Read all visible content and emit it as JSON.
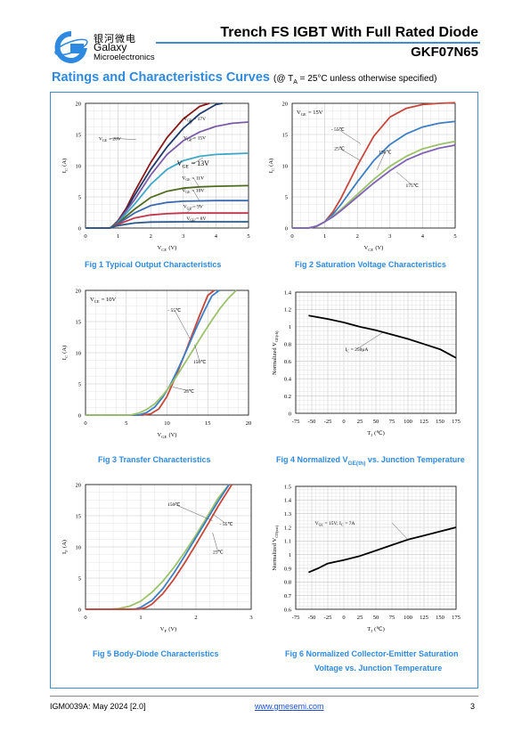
{
  "header": {
    "logo_cn": "银河微电",
    "logo_en1": "Galaxy",
    "logo_en2": "Microelectronics",
    "title": "Trench FS IGBT With Full Rated Diode",
    "part_number": "GKF07N65",
    "accent_color": "#3b8fd9"
  },
  "section": {
    "title": "Ratings and Characteristics Curves",
    "note": "(@ T",
    "note_sub": "A",
    "note_rest": " = 25°C unless otherwise specified)"
  },
  "captions": {
    "fig1": "Fig 1    Typical Output Characteristics",
    "fig2": "Fig 2    Saturation Voltage Characteristics",
    "fig3": "Fig 3    Transfer Characteristics",
    "fig4_a": "Fig 4    Normalized V",
    "fig4_sub": "GE(th)",
    "fig4_b": " vs. Junction Temperature",
    "fig5": "Fig 5    Body-Diode Characteristics",
    "fig6_l1": "Fig 6    Normalized Collector-Emitter Saturation",
    "fig6_l2": "Voltage vs. Junction Temperature"
  },
  "footer": {
    "doc_id": "IGM0039A: May 2024 [2.0]",
    "url": "www.gmesemi.com",
    "page": "3"
  },
  "chart_data": [
    {
      "id": "fig1",
      "type": "line",
      "xlabel": "V_CE (V)",
      "ylabel": "I_C (A)",
      "xlim": [
        0,
        5
      ],
      "ylim": [
        0,
        20
      ],
      "xticks": [
        0,
        1,
        2,
        3,
        4,
        5
      ],
      "yticks": [
        0,
        5,
        10,
        15,
        20
      ],
      "grid": true,
      "series": [
        {
          "name": "V_GE = 20V",
          "color": "#8b1a1a",
          "x": [
            0,
            0.75,
            0.85,
            1,
            1.25,
            1.5,
            2,
            2.5,
            3,
            3.5,
            3.8
          ],
          "y": [
            0,
            0,
            0.4,
            1.2,
            3.2,
            5.8,
            10.5,
            14.5,
            17.5,
            19.5,
            20
          ]
        },
        {
          "name": "V_GE = 17V",
          "color": "#1f3a6b",
          "x": [
            0,
            0.75,
            0.85,
            1,
            1.25,
            1.5,
            2,
            2.5,
            3,
            3.5,
            4,
            4.2
          ],
          "y": [
            0,
            0,
            0.4,
            1.1,
            2.9,
            5.2,
            9.4,
            13,
            16,
            18.3,
            19.8,
            20
          ]
        },
        {
          "name": "V_GE = 15V",
          "color": "#7b5ba8",
          "x": [
            0,
            0.75,
            0.85,
            1,
            1.5,
            2,
            2.5,
            3,
            3.5,
            4,
            4.5,
            5
          ],
          "y": [
            0,
            0,
            0.3,
            1,
            4.5,
            8.5,
            11.8,
            14,
            15.4,
            16.3,
            16.8,
            17
          ]
        },
        {
          "name": "V_GE = 13V",
          "color": "#3fa9c8",
          "x": [
            0,
            0.75,
            0.85,
            1,
            1.5,
            2,
            2.5,
            3,
            3.5,
            4,
            4.5,
            5
          ],
          "y": [
            0,
            0,
            0.3,
            0.9,
            3.8,
            7,
            9.4,
            10.8,
            11.5,
            11.8,
            11.9,
            12
          ]
        },
        {
          "name": "V_GE = 11V",
          "color": "#4f6b1f",
          "x": [
            0,
            0.75,
            0.85,
            1,
            1.5,
            2,
            2.5,
            3,
            3.5,
            4,
            5
          ],
          "y": [
            0,
            0,
            0.3,
            0.8,
            3,
            4.9,
            5.9,
            6.4,
            6.6,
            6.7,
            6.8
          ]
        },
        {
          "name": "V_GE = 10V",
          "color": "#3a6bb0",
          "x": [
            0,
            0.75,
            0.85,
            1,
            1.5,
            2,
            2.5,
            3,
            4,
            5
          ],
          "y": [
            0,
            0,
            0.2,
            0.7,
            2.4,
            3.6,
            4.1,
            4.3,
            4.4,
            4.4
          ]
        },
        {
          "name": "V_GE = 9V",
          "color": "#c2364b",
          "x": [
            0,
            0.75,
            0.85,
            1,
            1.5,
            2,
            2.5,
            3,
            4,
            5
          ],
          "y": [
            0,
            0,
            0.2,
            0.6,
            1.6,
            2.1,
            2.3,
            2.4,
            2.4,
            2.4
          ]
        },
        {
          "name": "V_GE = 8V",
          "color": "#2b5a8a",
          "x": [
            0,
            0.75,
            0.85,
            1,
            1.5,
            2,
            3,
            4,
            5
          ],
          "y": [
            0,
            0,
            0.2,
            0.4,
            0.8,
            0.95,
            1,
            1,
            1
          ]
        }
      ],
      "labels": [
        {
          "text": "V_GE = 20V",
          "x": 0.75,
          "y": 14.1,
          "ax": 1.55,
          "ay": 14.2
        },
        {
          "text": "V_GE = 17V",
          "x": 3.35,
          "y": 17.3,
          "ax": 3.2,
          "ay": 16.6
        },
        {
          "text": "V_GE = 15V",
          "x": 3.35,
          "y": 14.2,
          "ax": 3.2,
          "ay": 14.1
        },
        {
          "text": "V_GE = 13V",
          "x": 3.3,
          "y": 10.0,
          "ax": 3.6,
          "ay": 11.3,
          "big": true
        },
        {
          "text": "V_GE = 11V",
          "x": 3.3,
          "y": 7.8,
          "ax": 3.5,
          "ay": 6.5
        },
        {
          "text": "V_GE = 10V",
          "x": 3.3,
          "y": 5.8,
          "ax": 3.5,
          "ay": 4.3
        },
        {
          "text": "V_GE = 9V",
          "x": 3.3,
          "y": 3.2,
          "ax": 3.1,
          "ay": 2.4
        },
        {
          "text": "V_GE = 8V",
          "x": 3.4,
          "y": 1.3,
          "ax": 3.3,
          "ay": 1
        }
      ]
    },
    {
      "id": "fig2",
      "type": "line",
      "xlabel": "V_CE (V)",
      "ylabel": "I_C (A)",
      "xlim": [
        0,
        5
      ],
      "ylim": [
        0,
        20
      ],
      "xticks": [
        0,
        1,
        2,
        3,
        4,
        5
      ],
      "yticks": [
        0,
        5,
        10,
        15,
        20
      ],
      "grid": true,
      "annotation": "V_GE = 15V",
      "series": [
        {
          "name": "- 55℃",
          "color": "#c8463a",
          "x": [
            0,
            0.5,
            0.75,
            1,
            1.25,
            1.5,
            2,
            2.5,
            3,
            3.5,
            4,
            4.5,
            5
          ],
          "y": [
            0,
            0,
            0.3,
            1,
            2.6,
            4.8,
            10,
            14.7,
            17.8,
            19.2,
            19.8,
            20,
            20.1
          ]
        },
        {
          "name": "25℃",
          "color": "#3c7fc4",
          "x": [
            0,
            0.5,
            0.75,
            1,
            1.25,
            1.5,
            2,
            2.5,
            3,
            3.5,
            4,
            4.5,
            5
          ],
          "y": [
            0,
            0,
            0.3,
            1,
            2.2,
            3.8,
            7.4,
            10.8,
            13.4,
            15.1,
            16.2,
            16.8,
            17.1
          ]
        },
        {
          "name": "150℃",
          "color": "#9bc26a",
          "x": [
            0,
            0.5,
            0.75,
            1,
            1.25,
            1.5,
            2,
            2.5,
            3,
            3.5,
            4,
            4.5,
            5
          ],
          "y": [
            0,
            0,
            0.3,
            1,
            1.9,
            3,
            5.4,
            7.8,
            9.9,
            11.5,
            12.7,
            13.4,
            13.9
          ]
        },
        {
          "name": "175℃",
          "color": "#8063b4",
          "x": [
            0,
            0.5,
            0.75,
            1,
            1.25,
            1.5,
            2,
            2.5,
            3,
            3.5,
            4,
            4.5,
            5
          ],
          "y": [
            0,
            0,
            0.3,
            1,
            1.8,
            2.8,
            5,
            7.2,
            9.2,
            10.9,
            12,
            12.8,
            13.3
          ]
        }
      ],
      "labels": [
        {
          "text": "- 55℃",
          "x": 1.4,
          "y": 15.6,
          "ax": 2.1,
          "ay": 13.5
        },
        {
          "text": "25℃",
          "x": 1.45,
          "y": 12.5,
          "ax": 2.1,
          "ay": 10.8
        },
        {
          "text": "150℃",
          "x": 2.85,
          "y": 11.9,
          "ax": 2.6,
          "ay": 9.3
        },
        {
          "text": "175℃",
          "x": 3.68,
          "y": 6.6,
          "ax": 3.2,
          "ay": 9.0
        }
      ]
    },
    {
      "id": "fig3",
      "type": "line",
      "xlabel": "V_GE (V)",
      "ylabel": "I_C (A)",
      "xlim": [
        0,
        20
      ],
      "ylim": [
        0,
        20
      ],
      "xticks": [
        0,
        5,
        10,
        15,
        20
      ],
      "yticks": [
        0,
        5,
        10,
        15,
        20
      ],
      "grid": true,
      "annotation": "V_CE = 10V",
      "series": [
        {
          "name": "- 55℃",
          "color": "#c8463a",
          "x": [
            0,
            7,
            8,
            9,
            10,
            11,
            12,
            13,
            14,
            15,
            15.8
          ],
          "y": [
            0,
            0,
            0.2,
            1,
            3,
            6,
            9.2,
            12.6,
            16,
            19.2,
            20
          ]
        },
        {
          "name": "150℃",
          "color": "#3c7fc4",
          "x": [
            0,
            6.5,
            7.5,
            8.5,
            9.5,
            10.5,
            11.5,
            12.5,
            13.5,
            14.5,
            15.5,
            16.4
          ],
          "y": [
            0,
            0,
            0.4,
            1.3,
            2.9,
            5.1,
            7.8,
            10.7,
            13.7,
            16.5,
            19.1,
            20
          ]
        },
        {
          "name": "25℃",
          "color": "#9bc26a",
          "x": [
            0,
            5.5,
            6.5,
            7.5,
            8.5,
            9.5,
            10.5,
            11.5,
            12.5,
            13.5,
            14.5,
            15.5,
            16.5,
            17.5,
            18.5
          ],
          "y": [
            0,
            0,
            0.3,
            0.9,
            1.8,
            3.2,
            4.9,
            6.9,
            9,
            11.1,
            13.2,
            15.2,
            17.1,
            18.7,
            20
          ]
        }
      ],
      "labels": [
        {
          "text": "- 55℃",
          "x": 10.9,
          "y": 16.6,
          "ax": 12.8,
          "ay": 12.3
        },
        {
          "text": "150℃",
          "x": 14,
          "y": 8.3,
          "ax": 13.4,
          "ay": 11.3
        },
        {
          "text": "25℃",
          "x": 12.7,
          "y": 3.6,
          "ax": 10.7,
          "ay": 4.5
        }
      ]
    },
    {
      "id": "fig4",
      "type": "line",
      "xlabel": "T_J (℃)",
      "ylabel": "Normalized V_GE(th)",
      "xlim": [
        -75,
        175
      ],
      "ylim": [
        0,
        1.4
      ],
      "xticks": [
        -75,
        -50,
        -25,
        0,
        25,
        50,
        75,
        100,
        125,
        150,
        175
      ],
      "yticks": [
        0,
        0.2,
        0.4,
        0.6,
        0.8,
        1,
        1.2,
        1.4
      ],
      "grid": true,
      "series": [
        {
          "name": "I_C = 250μA",
          "color": "#000000",
          "x": [
            -55,
            -25,
            0,
            25,
            50,
            75,
            100,
            125,
            150,
            175
          ],
          "y": [
            1.13,
            1.09,
            1.05,
            1.0,
            0.96,
            0.91,
            0.86,
            0.8,
            0.74,
            0.64
          ]
        }
      ],
      "labels": [
        {
          "text": "I_C = 250μA",
          "x": 20,
          "y": 0.72,
          "ax": 60,
          "ay": 0.93
        }
      ]
    },
    {
      "id": "fig5",
      "type": "line",
      "xlabel": "V_F (V)",
      "ylabel": "I_F (A)",
      "xlim": [
        0,
        3
      ],
      "ylim": [
        0,
        20
      ],
      "xticks": [
        0,
        1,
        2,
        3
      ],
      "yticks": [
        0,
        5,
        10,
        15,
        20
      ],
      "grid": true,
      "series": [
        {
          "name": "150℃",
          "color": "#9bc26a",
          "x": [
            0,
            0.4,
            0.6,
            0.8,
            1,
            1.2,
            1.4,
            1.6,
            1.8,
            2,
            2.2,
            2.4,
            2.6
          ],
          "y": [
            0,
            0,
            0.1,
            0.5,
            1.3,
            2.7,
            4.5,
            6.7,
            9.2,
            11.9,
            14.8,
            17.8,
            20
          ]
        },
        {
          "name": "- 55℃",
          "color": "#3c7fc4",
          "x": [
            0,
            0.8,
            0.9,
            1,
            1.2,
            1.4,
            1.6,
            1.8,
            2,
            2.2,
            2.4,
            2.6
          ],
          "y": [
            0,
            0,
            0.05,
            0.3,
            1.4,
            3.3,
            5.8,
            8.6,
            11.5,
            14.4,
            17.3,
            20
          ]
        },
        {
          "name": "25℃",
          "color": "#c8463a",
          "x": [
            0,
            0.9,
            1,
            1.1,
            1.2,
            1.4,
            1.6,
            1.8,
            2,
            2.2,
            2.4,
            2.65
          ],
          "y": [
            0,
            0,
            0.05,
            0.3,
            0.8,
            2.5,
            4.8,
            7.5,
            10.4,
            13.4,
            16.5,
            20
          ]
        }
      ],
      "labels": [
        {
          "text": "150℃",
          "x": 1.6,
          "y": 16.6,
          "ax": 2.3,
          "ay": 14.2
        },
        {
          "text": "- 55℃",
          "x": 2.55,
          "y": 13.4,
          "ax": 2.3,
          "ay": 15.3
        },
        {
          "text": "25℃",
          "x": 2.4,
          "y": 8.9,
          "ax": 2.3,
          "ay": 12.3
        }
      ]
    },
    {
      "id": "fig6",
      "type": "line",
      "xlabel": "T_J (℃)",
      "ylabel": "Normalized V_CE(sat)",
      "xlim": [
        -75,
        175
      ],
      "ylim": [
        0.6,
        1.5
      ],
      "xticks": [
        -75,
        -50,
        -25,
        0,
        25,
        50,
        75,
        100,
        125,
        150,
        175
      ],
      "yticks": [
        0.6,
        0.7,
        0.8,
        0.9,
        1,
        1.1,
        1.2,
        1.3,
        1.4,
        1.5
      ],
      "grid": true,
      "series": [
        {
          "name": "V_GE = 15V; I_C = 7A",
          "color": "#000000",
          "x": [
            -55,
            -40,
            -25,
            -10,
            0,
            25,
            50,
            75,
            100,
            125,
            150,
            175
          ],
          "y": [
            0.87,
            0.9,
            0.935,
            0.95,
            0.96,
            0.99,
            1.03,
            1.07,
            1.11,
            1.14,
            1.17,
            1.2
          ]
        }
      ],
      "labels": [
        {
          "text": "V_GE = 15V; I_C = 7A",
          "x": -45,
          "y": 1.22,
          "ax": 100,
          "ay": 1.11,
          "lx": 75
        }
      ]
    }
  ]
}
